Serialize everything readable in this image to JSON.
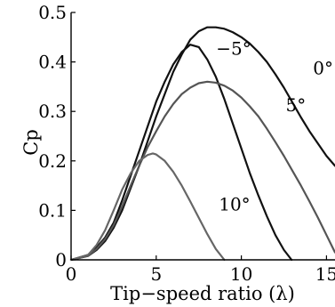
{
  "chart_data": {
    "type": "line",
    "xlabel": "Tip−speed ratio (λ)",
    "ylabel": "Cp",
    "xlim": [
      0,
      15.5
    ],
    "ylim": [
      0,
      0.5
    ],
    "x_ticks": [
      "0",
      "5",
      "10",
      "15"
    ],
    "y_ticks": [
      "0",
      "0.1",
      "0.2",
      "0.3",
      "0.4",
      "0.5"
    ],
    "grid": false,
    "series": [
      {
        "name": "−5°",
        "color": "#111111",
        "x": [
          0,
          1,
          1.5,
          2,
          2.5,
          3,
          3.5,
          4,
          4.5,
          5,
          5.5,
          6,
          6.5,
          7,
          7.5,
          8,
          8.5,
          9,
          9.5,
          10,
          10.5,
          11,
          11.5,
          12,
          12.5,
          12.95
        ],
        "y": [
          0,
          0.01,
          0.025,
          0.045,
          0.075,
          0.12,
          0.17,
          0.22,
          0.27,
          0.32,
          0.36,
          0.395,
          0.42,
          0.435,
          0.43,
          0.405,
          0.37,
          0.325,
          0.275,
          0.225,
          0.175,
          0.13,
          0.088,
          0.05,
          0.02,
          0
        ]
      },
      {
        "name": "0°",
        "color": "#111111",
        "x": [
          0,
          1,
          1.5,
          2,
          2.5,
          3,
          3.5,
          4,
          4.5,
          5,
          5.5,
          6,
          6.5,
          7,
          7.5,
          8,
          8.5,
          9,
          9.5,
          10,
          10.5,
          11,
          11.5,
          12,
          12.5,
          13,
          13.5,
          14,
          14.5,
          15,
          15.5
        ],
        "y": [
          0,
          0.008,
          0.02,
          0.038,
          0.065,
          0.1,
          0.145,
          0.19,
          0.24,
          0.29,
          0.335,
          0.38,
          0.415,
          0.445,
          0.462,
          0.47,
          0.47,
          0.467,
          0.46,
          0.45,
          0.437,
          0.42,
          0.4,
          0.375,
          0.348,
          0.318,
          0.288,
          0.26,
          0.235,
          0.21,
          0.19
        ]
      },
      {
        "name": "5°",
        "color": "#555555",
        "x": [
          0,
          1,
          1.5,
          2,
          2.5,
          3,
          3.5,
          4,
          4.5,
          5,
          5.5,
          6,
          6.5,
          7,
          7.5,
          8,
          8.5,
          9,
          9.5,
          10,
          10.5,
          11,
          11.5,
          12,
          12.5,
          13,
          13.5,
          14,
          14.5,
          15,
          15.5
        ],
        "y": [
          0,
          0.008,
          0.022,
          0.042,
          0.07,
          0.108,
          0.15,
          0.19,
          0.228,
          0.26,
          0.29,
          0.315,
          0.335,
          0.348,
          0.357,
          0.36,
          0.358,
          0.352,
          0.342,
          0.328,
          0.31,
          0.29,
          0.265,
          0.238,
          0.21,
          0.18,
          0.15,
          0.118,
          0.085,
          0.05,
          0.015
        ]
      },
      {
        "name": "10°",
        "color": "#666666",
        "x": [
          0,
          1,
          1.5,
          2,
          2.5,
          3,
          3.5,
          4,
          4.5,
          4.8,
          5,
          5.5,
          6,
          6.5,
          7,
          7.5,
          8,
          8.5,
          9
        ],
        "y": [
          0,
          0.01,
          0.03,
          0.06,
          0.1,
          0.142,
          0.175,
          0.2,
          0.212,
          0.215,
          0.213,
          0.2,
          0.178,
          0.15,
          0.118,
          0.085,
          0.052,
          0.022,
          0
        ]
      }
    ]
  }
}
